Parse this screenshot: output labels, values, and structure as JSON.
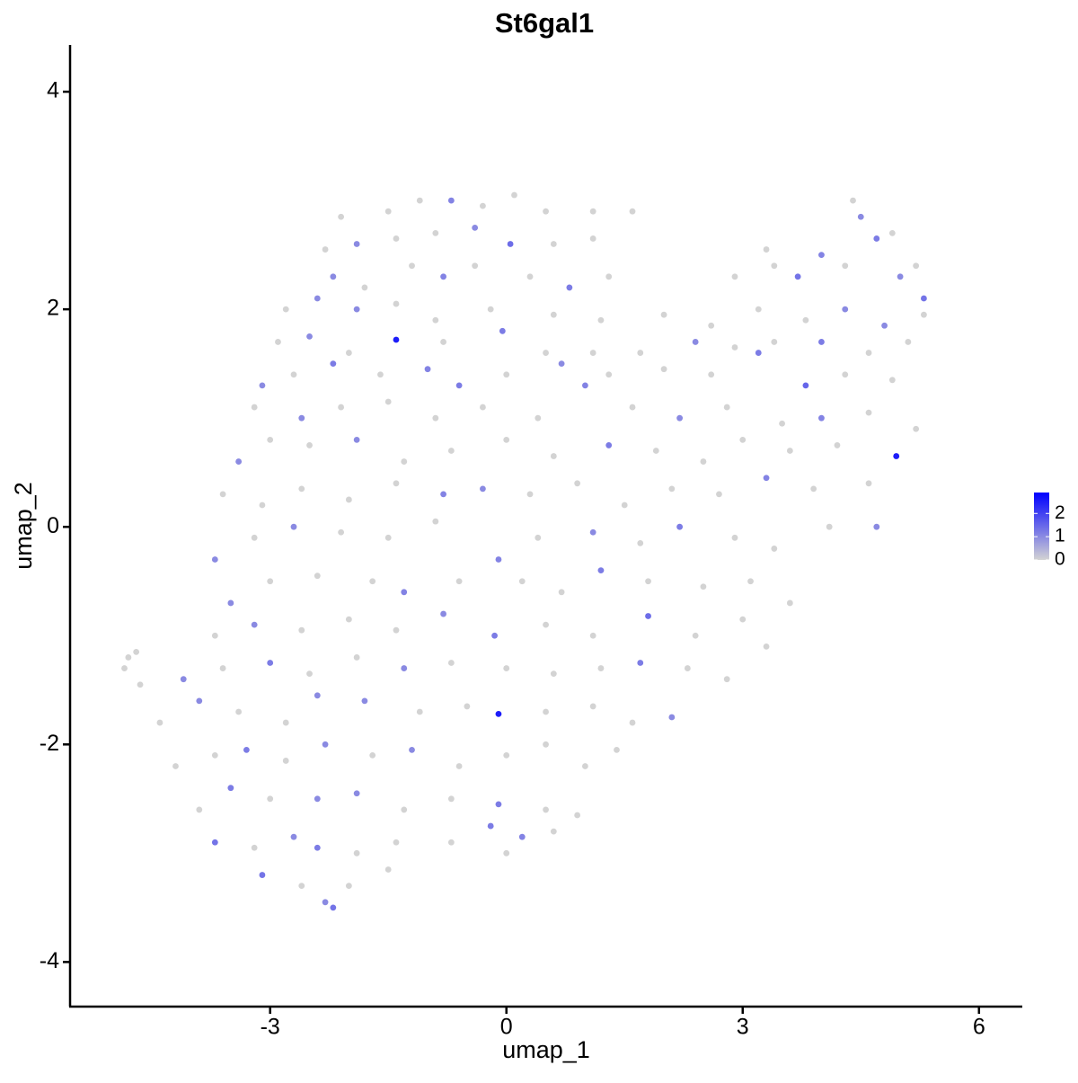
{
  "chart_data": {
    "type": "scatter",
    "title": "St6gal1",
    "x_label": "umap_1",
    "y_label": "umap_2",
    "xlim": [
      -5.54,
      6.55
    ],
    "ylim": [
      -4.41,
      4.43
    ],
    "xticks": [
      -3,
      0,
      3,
      6
    ],
    "yticks": [
      -4,
      -2,
      0,
      2,
      4
    ],
    "grid": false,
    "color_low": "#d3d3d3",
    "color_high": "#0000ff",
    "color_lim": [
      0,
      2.9
    ],
    "color_ticks": [
      0,
      1,
      2
    ],
    "legend_position": "right",
    "x": [
      -2.1,
      -1.5,
      -1.1,
      -0.7,
      -0.3,
      0.1,
      0.5,
      1.1,
      1.6,
      -2.3,
      -1.9,
      -1.4,
      -0.9,
      -0.4,
      0.05,
      0.6,
      1.1,
      4.4,
      4.5,
      4.7,
      4.9,
      5.2,
      3.3,
      3.7,
      4.0,
      -2.2,
      -1.8,
      -1.2,
      -0.8,
      -0.4,
      0.3,
      0.8,
      1.3,
      2.9,
      3.4,
      4.3,
      5.0,
      5.3,
      -2.8,
      -2.4,
      -1.9,
      -1.4,
      -0.9,
      -0.2,
      0.6,
      1.2,
      2.0,
      2.6,
      3.2,
      3.8,
      4.3,
      4.8,
      5.3,
      -2.9,
      -2.5,
      -2.0,
      -1.4,
      -0.8,
      -0.05,
      0.5,
      1.1,
      1.7,
      2.4,
      2.9,
      3.4,
      4.0,
      4.6,
      5.1,
      -3.1,
      -2.7,
      -2.2,
      -1.6,
      -1.0,
      -0.6,
      0.0,
      0.7,
      1.3,
      2.0,
      2.6,
      3.2,
      3.8,
      4.3,
      4.9,
      -3.2,
      -2.6,
      -2.1,
      -1.5,
      -0.9,
      -0.3,
      0.4,
      1.0,
      1.6,
      2.2,
      2.8,
      3.5,
      4.0,
      4.6,
      5.2,
      -3.4,
      -3.0,
      -2.5,
      -1.9,
      -1.3,
      -0.7,
      0.0,
      0.6,
      1.3,
      1.9,
      2.5,
      3.0,
      3.6,
      4.2,
      4.95,
      -3.6,
      -3.1,
      -2.6,
      -2.0,
      -1.4,
      -0.8,
      -0.3,
      0.3,
      0.9,
      1.5,
      2.1,
      2.7,
      3.3,
      3.9,
      4.6,
      -3.7,
      -3.2,
      -2.7,
      -2.1,
      -1.5,
      -0.9,
      -0.1,
      0.4,
      1.1,
      1.7,
      2.2,
      2.9,
      3.4,
      4.1,
      4.7,
      -3.5,
      -3.0,
      -2.4,
      -1.7,
      -1.3,
      -0.6,
      0.2,
      0.7,
      1.2,
      1.8,
      2.5,
      3.1,
      3.6,
      -3.7,
      -3.2,
      -2.6,
      -2.0,
      -1.4,
      -0.8,
      -0.15,
      0.5,
      1.1,
      1.8,
      2.4,
      3.0,
      3.3,
      -4.8,
      -4.7,
      -4.85,
      -4.65,
      -4.1,
      -3.6,
      -3.0,
      -2.5,
      -1.9,
      -1.3,
      -0.7,
      0.0,
      0.6,
      1.2,
      1.7,
      2.3,
      2.8,
      -4.4,
      -3.9,
      -3.4,
      -2.8,
      -2.4,
      -1.8,
      -1.1,
      -0.5,
      -0.1,
      0.5,
      1.1,
      1.6,
      2.1,
      -4.2,
      -3.7,
      -3.3,
      -2.8,
      -2.3,
      -1.7,
      -1.2,
      -0.6,
      0.0,
      0.5,
      1.0,
      1.4,
      -3.9,
      -3.5,
      -3.0,
      -2.4,
      -1.9,
      -1.3,
      -0.7,
      -0.1,
      0.5,
      0.9,
      -3.7,
      -3.2,
      -2.7,
      -2.4,
      -1.9,
      -1.4,
      -0.7,
      -0.2,
      0.2,
      0.6,
      -3.1,
      -2.6,
      -2.2,
      -2.3,
      -2.0,
      -1.5,
      0.0
    ],
    "y": [
      2.85,
      2.9,
      3.0,
      3.0,
      2.95,
      3.05,
      2.9,
      2.9,
      2.9,
      2.55,
      2.6,
      2.65,
      2.7,
      2.75,
      2.6,
      2.6,
      2.65,
      3.0,
      2.85,
      2.65,
      2.7,
      2.4,
      2.55,
      2.3,
      2.5,
      2.3,
      2.2,
      2.4,
      2.3,
      2.4,
      2.3,
      2.2,
      2.3,
      2.3,
      2.4,
      2.4,
      2.3,
      2.1,
      2.0,
      2.1,
      2.0,
      2.05,
      1.9,
      2.0,
      1.95,
      1.9,
      1.95,
      1.85,
      2.0,
      1.9,
      2.0,
      1.85,
      1.95,
      1.7,
      1.75,
      1.6,
      1.72,
      1.7,
      1.8,
      1.6,
      1.6,
      1.6,
      1.7,
      1.65,
      1.7,
      1.7,
      1.6,
      1.7,
      1.3,
      1.4,
      1.5,
      1.4,
      1.45,
      1.3,
      1.4,
      1.5,
      1.4,
      1.45,
      1.4,
      1.6,
      1.3,
      1.4,
      1.35,
      1.1,
      1.0,
      1.1,
      1.15,
      1.0,
      1.1,
      1.0,
      1.3,
      1.1,
      1.0,
      1.1,
      0.95,
      1.0,
      1.05,
      0.9,
      0.6,
      0.8,
      0.75,
      0.8,
      0.6,
      0.7,
      0.8,
      0.65,
      0.75,
      0.7,
      0.6,
      0.8,
      0.7,
      0.75,
      0.65,
      0.3,
      0.2,
      0.35,
      0.25,
      0.4,
      0.3,
      0.35,
      0.3,
      0.4,
      0.2,
      0.35,
      0.3,
      0.45,
      0.35,
      0.4,
      -0.3,
      -0.1,
      0.0,
      -0.05,
      -0.1,
      0.05,
      -0.3,
      -0.1,
      -0.05,
      -0.15,
      0.0,
      -0.1,
      -0.2,
      0.0,
      0.0,
      -0.7,
      -0.5,
      -0.45,
      -0.5,
      -0.6,
      -0.5,
      -0.5,
      -0.6,
      -0.4,
      -0.5,
      -0.55,
      -0.5,
      -0.7,
      -1.0,
      -0.9,
      -0.95,
      -0.85,
      -0.95,
      -0.8,
      -1.0,
      -0.9,
      -1.0,
      -0.82,
      -1.0,
      -0.85,
      -1.1,
      -1.2,
      -1.15,
      -1.3,
      -1.45,
      -1.4,
      -1.3,
      -1.25,
      -1.35,
      -1.2,
      -1.3,
      -1.25,
      -1.3,
      -1.35,
      -1.3,
      -1.25,
      -1.3,
      -1.4,
      -1.8,
      -1.6,
      -1.7,
      -1.8,
      -1.55,
      -1.6,
      -1.7,
      -1.65,
      -1.72,
      -1.7,
      -1.65,
      -1.8,
      -1.75,
      -2.2,
      -2.1,
      -2.05,
      -2.15,
      -2.0,
      -2.1,
      -2.05,
      -2.2,
      -2.1,
      -2.0,
      -2.2,
      -2.05,
      -2.6,
      -2.4,
      -2.5,
      -2.5,
      -2.45,
      -2.6,
      -2.5,
      -2.55,
      -2.6,
      -2.65,
      -2.9,
      -2.95,
      -2.85,
      -2.95,
      -3.0,
      -2.9,
      -2.9,
      -2.75,
      -2.85,
      -2.8,
      -3.2,
      -3.3,
      -3.5,
      -3.45,
      -3.3,
      -3.15,
      -3.0
    ],
    "values": [
      0,
      0,
      0,
      1.1,
      0,
      0,
      0,
      0,
      0,
      0,
      1.0,
      0,
      0,
      1.0,
      1.4,
      0,
      0,
      0,
      1.0,
      1.2,
      0,
      0,
      0,
      1.3,
      1.1,
      1.0,
      0,
      0,
      1.1,
      0,
      0,
      1.2,
      0,
      0,
      0,
      0,
      1.0,
      1.3,
      0,
      1.0,
      1.0,
      0,
      0,
      0,
      0,
      0,
      0,
      0,
      0,
      0,
      1.0,
      1.0,
      0,
      0,
      1.0,
      0,
      2.5,
      0,
      1.2,
      0,
      0,
      0,
      1.0,
      0,
      0,
      1.2,
      0,
      0,
      1.0,
      0,
      1.2,
      0,
      1.1,
      1.2,
      0,
      1.0,
      0,
      0,
      0,
      1.2,
      1.5,
      0,
      0,
      0,
      1.0,
      0,
      0,
      0,
      0,
      0,
      1.1,
      0,
      1.0,
      0,
      0,
      1.1,
      0,
      0,
      1.0,
      0,
      0,
      1.0,
      0,
      0,
      0,
      0,
      1.2,
      0,
      0,
      0,
      0,
      0,
      2.5,
      0,
      0,
      0,
      0,
      0,
      1.1,
      1.0,
      0,
      0,
      0,
      0,
      0,
      1.1,
      0,
      0,
      1.0,
      0,
      1.0,
      0,
      0,
      0,
      1.1,
      0,
      1.0,
      0,
      1.2,
      0,
      0,
      0,
      1.0,
      1.0,
      0,
      0,
      0,
      1.1,
      0,
      0,
      0,
      1.2,
      0,
      0,
      0,
      0,
      0,
      1.0,
      0,
      0,
      0,
      1.0,
      1.2,
      0,
      0,
      1.4,
      0,
      0,
      0,
      0,
      0,
      0,
      0,
      1.0,
      0,
      1.2,
      0,
      0,
      1.0,
      0,
      0,
      0,
      0,
      1.2,
      0,
      0,
      0,
      1.0,
      0,
      0,
      1.0,
      1.0,
      0,
      0,
      2.5,
      0,
      0,
      0,
      1.0,
      0,
      0,
      1.2,
      0,
      1.0,
      0,
      1.0,
      0,
      0,
      0,
      0,
      0,
      0,
      1.2,
      0,
      1.0,
      1.0,
      0,
      0,
      1.2,
      0,
      0,
      1.3,
      0,
      1.0,
      1.2,
      0,
      0,
      0,
      1.2,
      1.1,
      0,
      1.3,
      0,
      1.3,
      1.0,
      0,
      0,
      0
    ]
  }
}
